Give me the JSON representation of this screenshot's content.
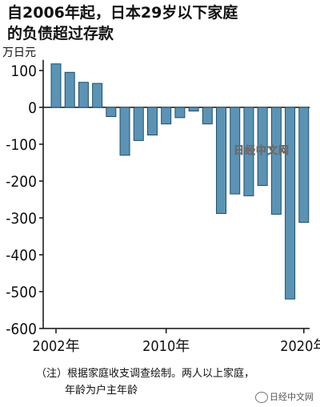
{
  "title_line1": "自2006年起，日本29岁以下家庭",
  "title_line2": "的负债超过存款",
  "unit": "万日元",
  "note_line1": "（注）根据家庭收支调查绘制。两人以上家庭，",
  "note_line2": "年龄为户主年龄",
  "watermark": "日经中文网",
  "source": "日经中文网",
  "colors": {
    "bar": "#5b93b5",
    "bar_edge": "#1f4f6e",
    "axis": "#111111"
  },
  "chart_data": {
    "type": "bar",
    "title": "自2006年起，日本29岁以下家庭的负债超过存款",
    "ylabel": "万日元",
    "ylim": [
      -600,
      120
    ],
    "yticks": [
      100,
      0,
      -100,
      -200,
      -300,
      -400,
      -500,
      -600
    ],
    "xtick_labels": [
      {
        "index": 0,
        "label": "2002年"
      },
      {
        "index": 8,
        "label": "2010年"
      },
      {
        "index": 18,
        "label": "2020年"
      }
    ],
    "categories": [
      "2002",
      "2003",
      "2004",
      "2005",
      "2006",
      "2007",
      "2008",
      "2009",
      "2010",
      "2011",
      "2012",
      "2013",
      "2014",
      "2015",
      "2016",
      "2017",
      "2018",
      "2019",
      "2020"
    ],
    "values": [
      118,
      95,
      68,
      65,
      -25,
      -130,
      -90,
      -75,
      -45,
      -28,
      -10,
      -45,
      -288,
      -235,
      -240,
      -212,
      -290,
      -520,
      -312
    ],
    "grid": false,
    "legend": "none"
  }
}
